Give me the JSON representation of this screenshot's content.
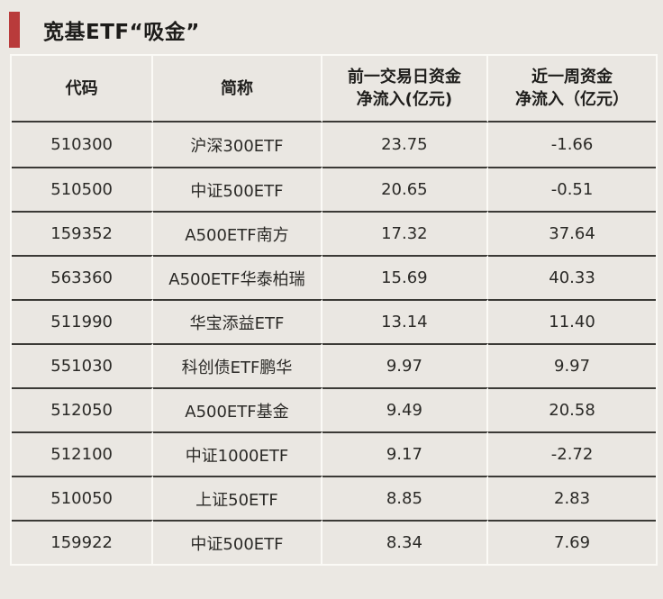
{
  "page": {
    "title": "宽基ETF“吸金”"
  },
  "colors": {
    "accent_red": "#b93b3b",
    "background": "#ebe8e3",
    "cell_background": "#eae7e2",
    "row_separator_dark": "#3b3a36",
    "column_separator_light": "#fbfaf6",
    "text": "#2b2a27"
  },
  "chart_data": {
    "type": "table",
    "title": "宽基ETF“吸金”",
    "columns": [
      "代码",
      "简称",
      "前一交易日资金净流入(亿元)",
      "近一周资金净流入（亿元）"
    ],
    "header_lines": [
      [
        "代码"
      ],
      [
        "简称"
      ],
      [
        "前一交易日资金",
        "净流入(亿元)"
      ],
      [
        "近一周资金",
        "净流入（亿元）"
      ]
    ],
    "rows": [
      [
        "510300",
        "沪深300ETF",
        "23.75",
        "-1.66"
      ],
      [
        "510500",
        "中证500ETF",
        "20.65",
        "-0.51"
      ],
      [
        "159352",
        "A500ETF南方",
        "17.32",
        "37.64"
      ],
      [
        "563360",
        "A500ETF华泰柏瑞",
        "15.69",
        "40.33"
      ],
      [
        "511990",
        "华宝添益ETF",
        "13.14",
        "11.40"
      ],
      [
        "551030",
        "科创债ETF鹏华",
        "9.97",
        "9.97"
      ],
      [
        "512050",
        "A500ETF基金",
        "9.49",
        "20.58"
      ],
      [
        "512100",
        "中证1000ETF",
        "9.17",
        "-2.72"
      ],
      [
        "510050",
        "上证50ETF",
        "8.85",
        "2.83"
      ],
      [
        "159922",
        "中证500ETF",
        "8.34",
        "7.69"
      ]
    ]
  }
}
